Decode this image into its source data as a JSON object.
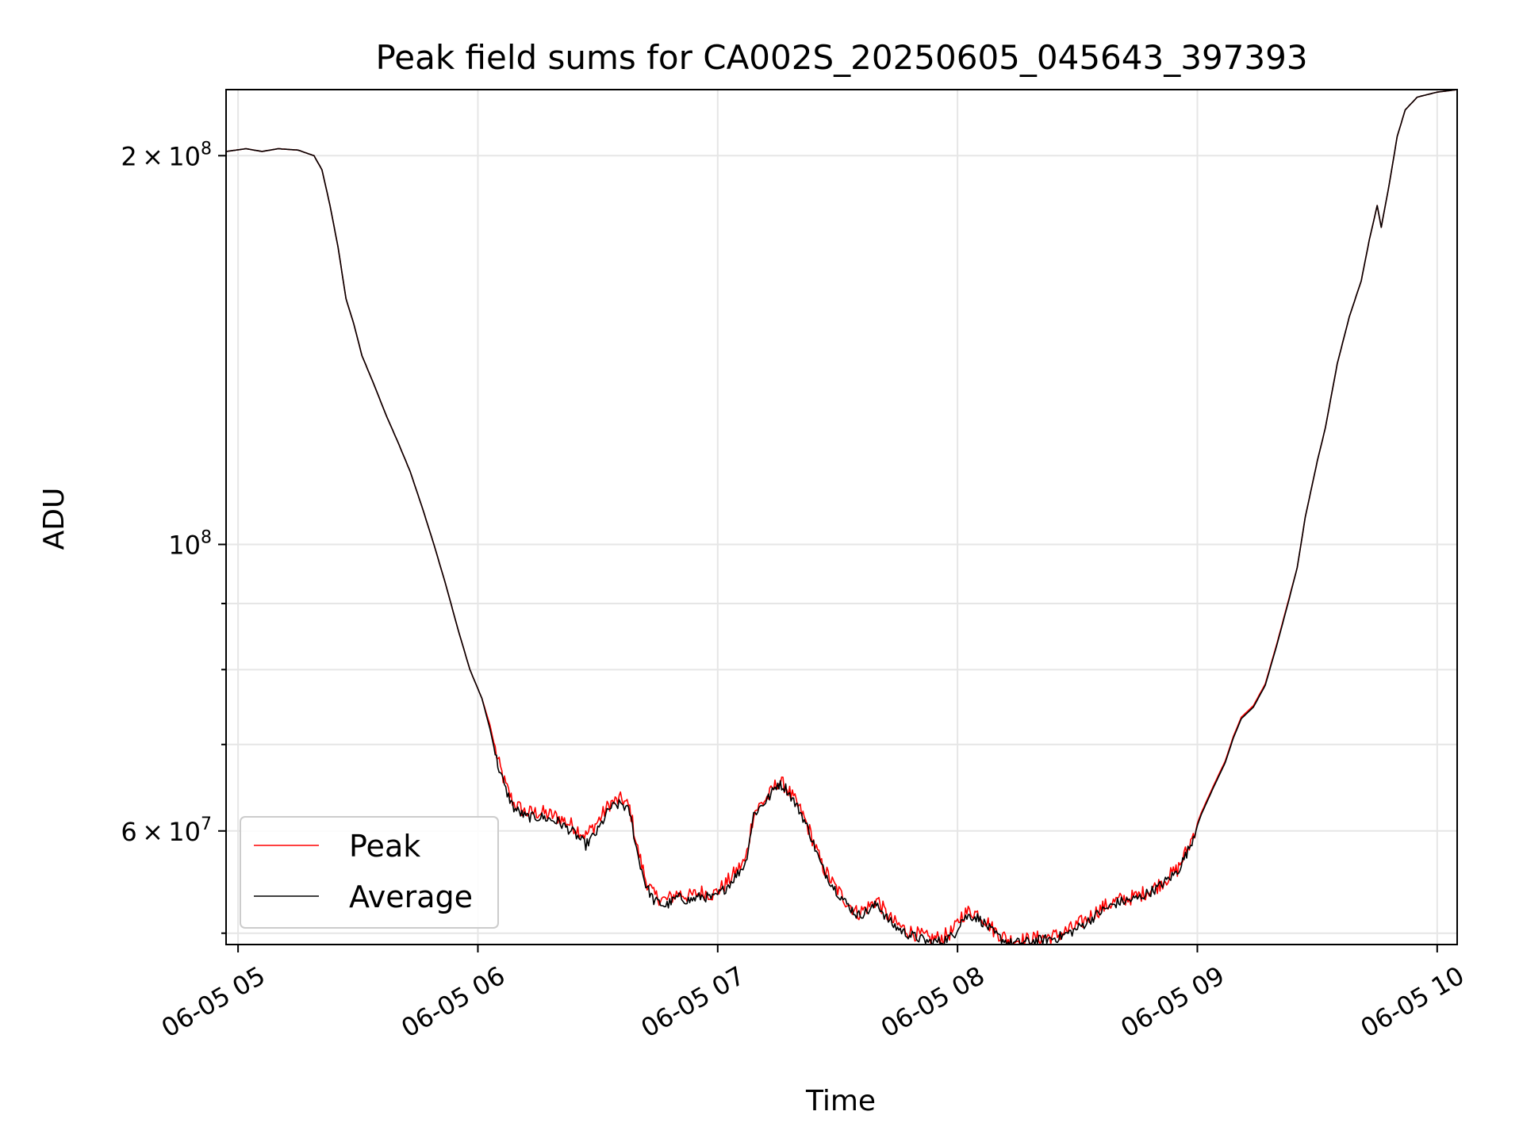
{
  "chart_data": {
    "type": "line",
    "title": "Peak field sums for CA002S_20250605_045643_397393",
    "xlabel": "Time",
    "ylabel": "ADU",
    "x_axis": {
      "kind": "time",
      "min_time": "2025-06-05 04:57",
      "max_time": "2025-06-05 10:05",
      "ticks": [
        {
          "time": "2025-06-05 05:00",
          "label": "06-05 05"
        },
        {
          "time": "2025-06-05 06:00",
          "label": "06-05 06"
        },
        {
          "time": "2025-06-05 07:00",
          "label": "06-05 07"
        },
        {
          "time": "2025-06-05 08:00",
          "label": "06-05 08"
        },
        {
          "time": "2025-06-05 09:00",
          "label": "06-05 09"
        },
        {
          "time": "2025-06-05 10:00",
          "label": "06-05 10"
        }
      ]
    },
    "y_axis": {
      "scale": "log",
      "ylim": [
        49000000,
        225000000
      ],
      "major_ticks": [
        {
          "value": 200000000,
          "label_mantissa": "2",
          "label_base": "10",
          "label_exp": "8"
        },
        {
          "value": 100000000,
          "label_mantissa": "",
          "label_base": "10",
          "label_exp": "8"
        },
        {
          "value": 60000000,
          "label_mantissa": "6",
          "label_base": "10",
          "label_exp": "7"
        }
      ],
      "minor_ticks": [
        50000000,
        70000000,
        80000000,
        90000000
      ]
    },
    "grid": true,
    "legend": "lower-left",
    "series": [
      {
        "name": "Peak",
        "color": "#ff0000",
        "noise": 0.006,
        "points": [
          [
            "2025-06-05 04:57",
            201500000
          ],
          [
            "2025-06-05 05:02",
            202500000
          ],
          [
            "2025-06-05 05:06",
            201500000
          ],
          [
            "2025-06-05 05:10",
            202500000
          ],
          [
            "2025-06-05 05:15",
            202000000
          ],
          [
            "2025-06-05 05:19",
            200000000
          ],
          [
            "2025-06-05 05:21",
            195000000
          ],
          [
            "2025-06-05 05:23",
            183000000
          ],
          [
            "2025-06-05 05:25",
            170000000
          ],
          [
            "2025-06-05 05:27",
            155000000
          ],
          [
            "2025-06-05 05:29",
            148000000
          ],
          [
            "2025-06-05 05:31",
            140000000
          ],
          [
            "2025-06-05 05:34",
            133000000
          ],
          [
            "2025-06-05 05:37",
            126000000
          ],
          [
            "2025-06-05 05:40",
            120000000
          ],
          [
            "2025-06-05 05:43",
            114000000
          ],
          [
            "2025-06-05 05:46",
            107000000
          ],
          [
            "2025-06-05 05:49",
            100000000
          ],
          [
            "2025-06-05 05:52",
            93000000
          ],
          [
            "2025-06-05 05:55",
            86000000
          ],
          [
            "2025-06-05 05:58",
            80000000
          ],
          [
            "2025-06-05 06:01",
            76000000
          ],
          [
            "2025-06-05 06:03",
            72500000
          ],
          [
            "2025-06-05 06:05",
            68000000
          ],
          [
            "2025-06-05 06:07",
            65000000
          ],
          [
            "2025-06-05 06:09",
            63000000
          ],
          [
            "2025-06-05 06:12",
            62000000
          ],
          [
            "2025-06-05 06:16",
            62000000
          ],
          [
            "2025-06-05 06:20",
            61500000
          ],
          [
            "2025-06-05 06:24",
            60500000
          ],
          [
            "2025-06-05 06:27",
            59500000
          ],
          [
            "2025-06-05 06:30",
            61000000
          ],
          [
            "2025-06-05 06:33",
            63000000
          ],
          [
            "2025-06-05 06:36",
            63500000
          ],
          [
            "2025-06-05 06:38",
            62500000
          ],
          [
            "2025-06-05 06:40",
            58000000
          ],
          [
            "2025-06-05 06:42",
            55000000
          ],
          [
            "2025-06-05 06:44",
            53500000
          ],
          [
            "2025-06-05 06:47",
            53000000
          ],
          [
            "2025-06-05 06:50",
            53700000
          ],
          [
            "2025-06-05 06:53",
            53400000
          ],
          [
            "2025-06-05 06:56",
            53800000
          ],
          [
            "2025-06-05 06:59",
            53600000
          ],
          [
            "2025-06-05 07:02",
            54600000
          ],
          [
            "2025-06-05 07:05",
            56000000
          ],
          [
            "2025-06-05 07:07",
            57000000
          ],
          [
            "2025-06-05 07:09",
            62000000
          ],
          [
            "2025-06-05 07:11",
            63000000
          ],
          [
            "2025-06-05 07:13",
            64000000
          ],
          [
            "2025-06-05 07:15",
            65500000
          ],
          [
            "2025-06-05 07:17",
            65000000
          ],
          [
            "2025-06-05 07:19",
            63500000
          ],
          [
            "2025-06-05 07:21",
            62000000
          ],
          [
            "2025-06-05 07:23",
            60000000
          ],
          [
            "2025-06-05 07:26",
            56500000
          ],
          [
            "2025-06-05 07:29",
            54500000
          ],
          [
            "2025-06-05 07:32",
            53000000
          ],
          [
            "2025-06-05 07:35",
            51800000
          ],
          [
            "2025-06-05 07:38",
            52500000
          ],
          [
            "2025-06-05 07:40",
            53100000
          ],
          [
            "2025-06-05 07:42",
            51800000
          ],
          [
            "2025-06-05 07:44",
            51000000
          ],
          [
            "2025-06-05 07:47",
            50300000
          ],
          [
            "2025-06-05 07:50",
            49900000
          ],
          [
            "2025-06-05 07:53",
            49500000
          ],
          [
            "2025-06-05 07:56",
            49600000
          ],
          [
            "2025-06-05 07:59",
            50200000
          ],
          [
            "2025-06-05 08:01",
            51600000
          ],
          [
            "2025-06-05 08:03",
            52000000
          ],
          [
            "2025-06-05 08:05",
            51800000
          ],
          [
            "2025-06-05 08:07",
            51200000
          ],
          [
            "2025-06-05 08:09",
            50300000
          ],
          [
            "2025-06-05 08:11",
            49800000
          ],
          [
            "2025-06-05 08:13",
            49400000
          ],
          [
            "2025-06-05 08:17",
            49400000
          ],
          [
            "2025-06-05 08:21",
            49600000
          ],
          [
            "2025-06-05 08:25",
            49800000
          ],
          [
            "2025-06-05 08:29",
            50500000
          ],
          [
            "2025-06-05 08:32",
            51200000
          ],
          [
            "2025-06-05 08:36",
            52300000
          ],
          [
            "2025-06-05 08:40",
            53000000
          ],
          [
            "2025-06-05 08:45",
            53400000
          ],
          [
            "2025-06-05 08:50",
            54400000
          ],
          [
            "2025-06-05 08:55",
            56000000
          ],
          [
            "2025-06-05 08:58",
            58500000
          ],
          [
            "2025-06-05 09:01",
            62000000
          ],
          [
            "2025-06-05 09:04",
            65000000
          ],
          [
            "2025-06-05 09:07",
            68000000
          ],
          [
            "2025-06-05 09:09",
            71000000
          ],
          [
            "2025-06-05 09:11",
            73500000
          ],
          [
            "2025-06-05 09:14",
            75000000
          ],
          [
            "2025-06-05 09:17",
            78000000
          ],
          [
            "2025-06-05 09:20",
            84000000
          ],
          [
            "2025-06-05 09:23",
            91000000
          ],
          [
            "2025-06-05 09:25",
            96000000
          ],
          [
            "2025-06-05 09:27",
            105000000
          ],
          [
            "2025-06-05 09:30",
            116000000
          ],
          [
            "2025-06-05 09:32",
            123000000
          ],
          [
            "2025-06-05 09:35",
            138000000
          ],
          [
            "2025-06-05 09:38",
            150000000
          ],
          [
            "2025-06-05 09:41",
            160000000
          ],
          [
            "2025-06-05 09:43",
            172000000
          ],
          [
            "2025-06-05 09:45",
            183000000
          ],
          [
            "2025-06-05 09:46",
            176000000
          ],
          [
            "2025-06-05 09:48",
            190000000
          ],
          [
            "2025-06-05 09:50",
            207000000
          ],
          [
            "2025-06-05 09:52",
            217000000
          ],
          [
            "2025-06-05 09:55",
            222000000
          ],
          [
            "2025-06-05 10:00",
            224000000
          ],
          [
            "2025-06-05 10:05",
            225000000
          ]
        ]
      },
      {
        "name": "Average",
        "color": "#000000",
        "noise": 0.004,
        "points": [
          [
            "2025-06-05 04:57",
            201500000
          ],
          [
            "2025-06-05 05:02",
            202500000
          ],
          [
            "2025-06-05 05:06",
            201500000
          ],
          [
            "2025-06-05 05:10",
            202500000
          ],
          [
            "2025-06-05 05:15",
            202000000
          ],
          [
            "2025-06-05 05:19",
            200000000
          ],
          [
            "2025-06-05 05:21",
            195000000
          ],
          [
            "2025-06-05 05:23",
            183000000
          ],
          [
            "2025-06-05 05:25",
            170000000
          ],
          [
            "2025-06-05 05:27",
            155000000
          ],
          [
            "2025-06-05 05:29",
            148000000
          ],
          [
            "2025-06-05 05:31",
            140000000
          ],
          [
            "2025-06-05 05:34",
            133000000
          ],
          [
            "2025-06-05 05:37",
            126000000
          ],
          [
            "2025-06-05 05:40",
            120000000
          ],
          [
            "2025-06-05 05:43",
            114000000
          ],
          [
            "2025-06-05 05:46",
            107000000
          ],
          [
            "2025-06-05 05:49",
            100000000
          ],
          [
            "2025-06-05 05:52",
            93000000
          ],
          [
            "2025-06-05 05:55",
            86000000
          ],
          [
            "2025-06-05 05:58",
            80000000
          ],
          [
            "2025-06-05 06:01",
            76000000
          ],
          [
            "2025-06-05 06:03",
            72000000
          ],
          [
            "2025-06-05 06:05",
            67500000
          ],
          [
            "2025-06-05 06:07",
            64500000
          ],
          [
            "2025-06-05 06:09",
            62500000
          ],
          [
            "2025-06-05 06:12",
            61500000
          ],
          [
            "2025-06-05 06:16",
            61500000
          ],
          [
            "2025-06-05 06:20",
            61000000
          ],
          [
            "2025-06-05 06:24",
            59800000
          ],
          [
            "2025-06-05 06:27",
            58500000
          ],
          [
            "2025-06-05 06:30",
            60000000
          ],
          [
            "2025-06-05 06:33",
            62500000
          ],
          [
            "2025-06-05 06:36",
            63000000
          ],
          [
            "2025-06-05 06:38",
            62000000
          ],
          [
            "2025-06-05 06:40",
            57500000
          ],
          [
            "2025-06-05 06:42",
            54500000
          ],
          [
            "2025-06-05 06:44",
            53000000
          ],
          [
            "2025-06-05 06:47",
            52500000
          ],
          [
            "2025-06-05 06:50",
            53300000
          ],
          [
            "2025-06-05 06:53",
            53000000
          ],
          [
            "2025-06-05 06:56",
            53400000
          ],
          [
            "2025-06-05 06:59",
            53200000
          ],
          [
            "2025-06-05 07:02",
            54200000
          ],
          [
            "2025-06-05 07:05",
            55600000
          ],
          [
            "2025-06-05 07:07",
            56700000
          ],
          [
            "2025-06-05 07:09",
            61800000
          ],
          [
            "2025-06-05 07:11",
            62800000
          ],
          [
            "2025-06-05 07:13",
            63800000
          ],
          [
            "2025-06-05 07:15",
            65300000
          ],
          [
            "2025-06-05 07:17",
            64800000
          ],
          [
            "2025-06-05 07:19",
            63300000
          ],
          [
            "2025-06-05 07:21",
            61800000
          ],
          [
            "2025-06-05 07:23",
            59800000
          ],
          [
            "2025-06-05 07:26",
            56300000
          ],
          [
            "2025-06-05 07:29",
            54300000
          ],
          [
            "2025-06-05 07:32",
            52800000
          ],
          [
            "2025-06-05 07:35",
            51600000
          ],
          [
            "2025-06-05 07:38",
            52100000
          ],
          [
            "2025-06-05 07:40",
            52700000
          ],
          [
            "2025-06-05 07:42",
            51500000
          ],
          [
            "2025-06-05 07:44",
            50700000
          ],
          [
            "2025-06-05 07:47",
            50000000
          ],
          [
            "2025-06-05 07:50",
            49600000
          ],
          [
            "2025-06-05 07:53",
            49200000
          ],
          [
            "2025-06-05 07:56",
            49300000
          ],
          [
            "2025-06-05 07:59",
            49800000
          ],
          [
            "2025-06-05 08:01",
            51200000
          ],
          [
            "2025-06-05 08:03",
            51600000
          ],
          [
            "2025-06-05 08:05",
            51400000
          ],
          [
            "2025-06-05 08:07",
            50800000
          ],
          [
            "2025-06-05 08:09",
            50000000
          ],
          [
            "2025-06-05 08:11",
            49500000
          ],
          [
            "2025-06-05 08:13",
            49100000
          ],
          [
            "2025-06-05 08:17",
            49200000
          ],
          [
            "2025-06-05 08:21",
            49400000
          ],
          [
            "2025-06-05 08:25",
            49600000
          ],
          [
            "2025-06-05 08:29",
            50200000
          ],
          [
            "2025-06-05 08:32",
            50900000
          ],
          [
            "2025-06-05 08:36",
            52000000
          ],
          [
            "2025-06-05 08:40",
            52800000
          ],
          [
            "2025-06-05 08:45",
            53200000
          ],
          [
            "2025-06-05 08:50",
            54200000
          ],
          [
            "2025-06-05 08:55",
            55800000
          ],
          [
            "2025-06-05 08:58",
            58200000
          ],
          [
            "2025-06-05 09:01",
            61800000
          ],
          [
            "2025-06-05 09:04",
            64800000
          ],
          [
            "2025-06-05 09:07",
            67800000
          ],
          [
            "2025-06-05 09:09",
            70800000
          ],
          [
            "2025-06-05 09:11",
            73300000
          ],
          [
            "2025-06-05 09:14",
            74800000
          ],
          [
            "2025-06-05 09:17",
            77800000
          ],
          [
            "2025-06-05 09:20",
            83800000
          ],
          [
            "2025-06-05 09:23",
            90800000
          ],
          [
            "2025-06-05 09:25",
            96000000
          ],
          [
            "2025-06-05 09:27",
            105000000
          ],
          [
            "2025-06-05 09:30",
            116000000
          ],
          [
            "2025-06-05 09:32",
            123000000
          ],
          [
            "2025-06-05 09:35",
            138000000
          ],
          [
            "2025-06-05 09:38",
            150000000
          ],
          [
            "2025-06-05 09:41",
            160000000
          ],
          [
            "2025-06-05 09:43",
            172000000
          ],
          [
            "2025-06-05 09:45",
            183000000
          ],
          [
            "2025-06-05 09:46",
            176000000
          ],
          [
            "2025-06-05 09:48",
            190000000
          ],
          [
            "2025-06-05 09:50",
            207000000
          ],
          [
            "2025-06-05 09:52",
            217000000
          ],
          [
            "2025-06-05 09:55",
            222000000
          ],
          [
            "2025-06-05 10:00",
            224000000
          ],
          [
            "2025-06-05 10:05",
            225000000
          ]
        ]
      }
    ]
  }
}
